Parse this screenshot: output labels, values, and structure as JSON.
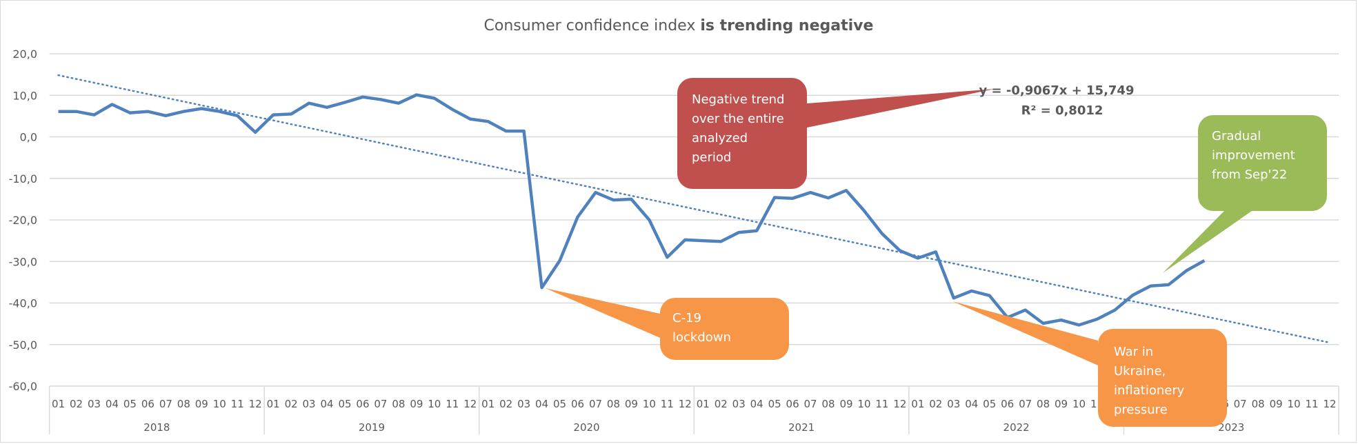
{
  "chart_data": {
    "type": "line",
    "title": {
      "regular": "Consumer  confidence index ",
      "bold": "is trending negative"
    },
    "xlabel": "",
    "ylabel": "",
    "ylim": [
      -60,
      20
    ],
    "yticks": [
      20,
      10,
      0,
      -10,
      -20,
      -30,
      -40,
      -50,
      -60
    ],
    "ytick_labels": [
      "20,0",
      "10,0",
      "0,0",
      "-10,0",
      "-20,0",
      "-30,0",
      "-40,0",
      "-50,0",
      "-60,0"
    ],
    "grid": true,
    "years": [
      "2018",
      "2019",
      "2020",
      "2021",
      "2022",
      "2023"
    ],
    "months": [
      "01",
      "02",
      "03",
      "04",
      "05",
      "06",
      "07",
      "08",
      "09",
      "10",
      "11",
      "12"
    ],
    "series": [
      {
        "name": "Consumer confidence index",
        "color": "#4f81bd",
        "values": [
          6.1,
          6.1,
          5.3,
          7.8,
          5.8,
          6.1,
          5.1,
          6.1,
          6.8,
          6.1,
          5.1,
          1.1,
          5.3,
          5.5,
          8.1,
          7.1,
          8.3,
          9.6,
          9.0,
          8.1,
          10.1,
          9.3,
          6.6,
          4.3,
          3.7,
          1.4,
          1.4,
          -36.3,
          -29.8,
          -19.3,
          -13.4,
          -15.2,
          -15.0,
          -20.0,
          -29.0,
          -24.8,
          -25.0,
          -25.2,
          -23.0,
          -22.6,
          -14.6,
          -14.8,
          -13.4,
          -14.7,
          -12.9,
          -17.8,
          -23.3,
          -27.4,
          -29.2,
          -27.7,
          -38.8,
          -37.1,
          -38.2,
          -43.5,
          -41.7,
          -44.9,
          -44.1,
          -45.3,
          -43.9,
          -41.7,
          -38.1,
          -35.9,
          -35.6,
          -32.2,
          -29.8
        ]
      }
    ],
    "trendline": {
      "type": "linear",
      "style": "dotted",
      "color": "#4f81bd",
      "slope": -0.9067,
      "intercept": 15.749,
      "equation_label": "y = -0,9067x + 15,749",
      "r2_label": "R² = 0,8012"
    },
    "annotations": [
      {
        "id": "negative-trend",
        "lines": [
          "Negative trend",
          "over the entire",
          "analyzed",
          "period"
        ],
        "color": "#c0504d"
      },
      {
        "id": "c19-lockdown",
        "lines": [
          "C-19",
          "lockdown"
        ],
        "color": "#f79646"
      },
      {
        "id": "war-ukraine",
        "lines": [
          "War in",
          "Ukraine,",
          "inflationery",
          "pressure"
        ],
        "color": "#f79646"
      },
      {
        "id": "gradual-improvement",
        "lines": [
          "Gradual",
          "improvement",
          "from Sep'22"
        ],
        "color": "#9bbb59"
      }
    ]
  }
}
